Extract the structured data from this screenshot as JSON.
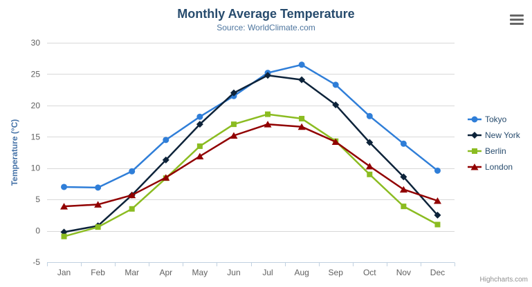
{
  "chart_data": {
    "type": "line",
    "title": "Monthly Average Temperature",
    "subtitle": "Source: WorldClimate.com",
    "categories": [
      "Jan",
      "Feb",
      "Mar",
      "Apr",
      "May",
      "Jun",
      "Jul",
      "Aug",
      "Sep",
      "Oct",
      "Nov",
      "Dec"
    ],
    "xlabel": "",
    "ylabel": "Temperature (°C)",
    "ylim": [
      -5,
      30
    ],
    "ytick_step": 5,
    "grid": true,
    "legend_position": "right",
    "series": [
      {
        "name": "Tokyo",
        "color": "#2f7ed8",
        "marker": "circle",
        "values": [
          7.0,
          6.9,
          9.5,
          14.5,
          18.2,
          21.5,
          25.2,
          26.5,
          23.3,
          18.3,
          13.9,
          9.6
        ]
      },
      {
        "name": "New York",
        "color": "#0d233a",
        "marker": "diamond",
        "values": [
          -0.2,
          0.8,
          5.7,
          11.3,
          17.0,
          22.0,
          24.8,
          24.1,
          20.1,
          14.1,
          8.6,
          2.5
        ]
      },
      {
        "name": "Berlin",
        "color": "#8bbc21",
        "marker": "square",
        "values": [
          -0.9,
          0.6,
          3.5,
          8.4,
          13.5,
          17.0,
          18.6,
          17.9,
          14.3,
          9.0,
          3.9,
          1.0
        ]
      },
      {
        "name": "London",
        "color": "#910000",
        "marker": "triangle",
        "values": [
          3.9,
          4.2,
          5.7,
          8.5,
          11.9,
          15.2,
          17.0,
          16.6,
          14.2,
          10.3,
          6.6,
          4.8
        ]
      }
    ],
    "colors": {
      "title": "#274b6d",
      "subtitle": "#4d759e",
      "axis_labels": "#606060",
      "y_axis_title": "#4572a7",
      "gridline": "#d8d8d8",
      "axis_line": "#c0d0e0",
      "legend_text": "#274b6d",
      "credits_text": "#909090",
      "menu_icon": "#666666"
    },
    "credits": "Highcharts.com"
  }
}
